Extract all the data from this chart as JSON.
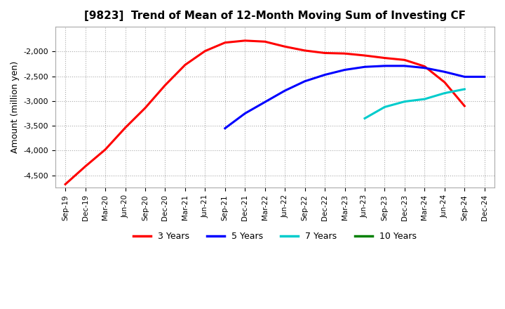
{
  "title": "[9823]  Trend of Mean of 12-Month Moving Sum of Investing CF",
  "ylabel": "Amount (million yen)",
  "background_color": "#ffffff",
  "grid_color": "#aaaaaa",
  "ylim": [
    -4750,
    -1500
  ],
  "yticks": [
    -4500,
    -4000,
    -3500,
    -3000,
    -2500,
    -2000
  ],
  "x_labels": [
    "Sep-19",
    "Dec-19",
    "Mar-20",
    "Jun-20",
    "Sep-20",
    "Dec-20",
    "Mar-21",
    "Jun-21",
    "Sep-21",
    "Dec-21",
    "Mar-22",
    "Jun-22",
    "Sep-22",
    "Dec-22",
    "Mar-23",
    "Jun-23",
    "Sep-23",
    "Dec-23",
    "Mar-24",
    "Jun-24",
    "Sep-24",
    "Dec-24"
  ],
  "series": [
    {
      "label": "3 Years",
      "color": "#ff0000",
      "x_indices": [
        0,
        1,
        2,
        3,
        4,
        5,
        6,
        7,
        8,
        9,
        10,
        11,
        12,
        13,
        14,
        15,
        16,
        17,
        18,
        19,
        20
      ],
      "values": [
        -4680,
        -4320,
        -3980,
        -3540,
        -3140,
        -2680,
        -2270,
        -1990,
        -1820,
        -1780,
        -1800,
        -1900,
        -1980,
        -2030,
        -2040,
        -2080,
        -2130,
        -2170,
        -2300,
        -2620,
        -3100
      ]
    },
    {
      "label": "5 Years",
      "color": "#0000ff",
      "x_indices": [
        8,
        9,
        10,
        11,
        12,
        13,
        14,
        15,
        16,
        17,
        18,
        19,
        20,
        21
      ],
      "values": [
        -3550,
        -3250,
        -3020,
        -2790,
        -2600,
        -2470,
        -2370,
        -2310,
        -2290,
        -2290,
        -2330,
        -2410,
        -2510,
        -2510
      ]
    },
    {
      "label": "7 Years",
      "color": "#00cccc",
      "x_indices": [
        15,
        16,
        17,
        18,
        19,
        20
      ],
      "values": [
        -3350,
        -3120,
        -3010,
        -2960,
        -2840,
        -2760
      ]
    },
    {
      "label": "10 Years",
      "color": "#008000",
      "x_indices": [],
      "values": []
    }
  ]
}
